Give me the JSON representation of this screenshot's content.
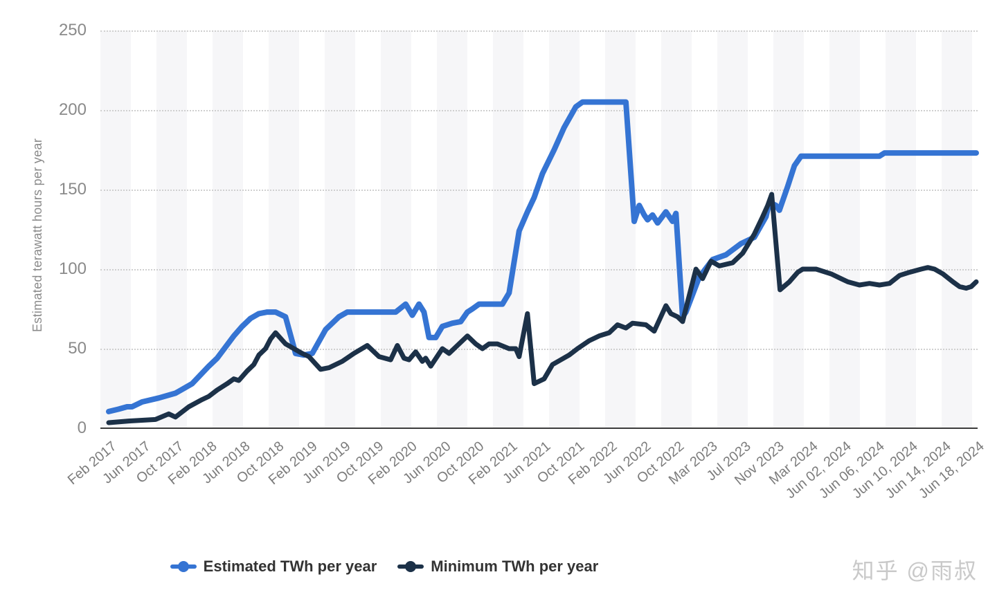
{
  "watermark": "知乎 @雨叔",
  "y_axis": {
    "title": "Estimated terawatt hours per year",
    "tick_values": [
      0,
      50,
      100,
      150,
      200,
      250
    ]
  },
  "x_axis": {
    "tick_labels": [
      "Feb 2017",
      "Jun 2017",
      "Oct 2017",
      "Feb 2018",
      "Jun 2018",
      "Oct 2018",
      "Feb 2019",
      "Jun 2019",
      "Oct 2019",
      "Feb 2020",
      "Jun 2020",
      "Oct 2020",
      "Feb 2021",
      "Jun 2021",
      "Oct 2021",
      "Feb 2022",
      "Jun 2022",
      "Oct 2022",
      "Mar 2023",
      "Jul 2023",
      "Nov 2023",
      "Mar 2024",
      "Jun 02, 2024",
      "Jun 06, 2024",
      "Jun 10, 2024",
      "Jun 14, 2024",
      "Jun 18, 2024"
    ]
  },
  "legend": {
    "items": [
      {
        "label": "Estimated TWh per year",
        "color": "#3574d3"
      },
      {
        "label": "Minimum TWh per year",
        "color": "#1c3148"
      }
    ]
  },
  "chart_data": {
    "type": "line",
    "title": "",
    "ylabel": "Estimated terawatt hours per year",
    "xlabel": "",
    "ylim": [
      0,
      250
    ],
    "y_step": 50,
    "grid": "horizontal-dotted",
    "legend_position": "bottom",
    "background": "alternating vertical light-gray/white stripes",
    "x_unit": "tick index: 0 = Feb 2017 ... 26 = Jun 18, 2024 (27 evenly spaced labeled ticks)",
    "categories": [
      "Feb 2017",
      "Jun 2017",
      "Oct 2017",
      "Feb 2018",
      "Jun 2018",
      "Oct 2018",
      "Feb 2019",
      "Jun 2019",
      "Oct 2019",
      "Feb 2020",
      "Jun 2020",
      "Oct 2020",
      "Feb 2021",
      "Jun 2021",
      "Oct 2021",
      "Feb 2022",
      "Jun 2022",
      "Oct 2022",
      "Mar 2023",
      "Jul 2023",
      "Nov 2023",
      "Mar 2024",
      "Jun 02, 2024",
      "Jun 06, 2024",
      "Jun 10, 2024",
      "Jun 14, 2024",
      "Jun 18, 2024"
    ],
    "series": [
      {
        "name": "Estimated TWh per year",
        "color": "#3574d3",
        "points": [
          [
            0,
            10.5
          ],
          [
            0.3,
            12
          ],
          [
            0.55,
            13.5
          ],
          [
            0.7,
            13.5
          ],
          [
            1,
            16.5
          ],
          [
            1.5,
            19
          ],
          [
            2,
            22
          ],
          [
            2.5,
            28
          ],
          [
            3,
            39
          ],
          [
            3.25,
            44
          ],
          [
            3.5,
            51
          ],
          [
            3.75,
            58
          ],
          [
            4,
            64
          ],
          [
            4.25,
            69
          ],
          [
            4.5,
            72
          ],
          [
            4.75,
            73
          ],
          [
            5,
            73
          ],
          [
            5.3,
            70
          ],
          [
            5.6,
            47
          ],
          [
            5.85,
            46
          ],
          [
            6.1,
            47
          ],
          [
            6.5,
            62
          ],
          [
            6.9,
            70
          ],
          [
            7.15,
            73
          ],
          [
            8,
            73
          ],
          [
            8.6,
            73
          ],
          [
            8.9,
            78
          ],
          [
            9.1,
            71
          ],
          [
            9.3,
            78
          ],
          [
            9.45,
            73
          ],
          [
            9.6,
            57
          ],
          [
            9.8,
            57
          ],
          [
            10,
            64
          ],
          [
            10.3,
            66
          ],
          [
            10.55,
            67
          ],
          [
            10.75,
            73
          ],
          [
            10.9,
            75
          ],
          [
            11.1,
            78
          ],
          [
            11.8,
            78
          ],
          [
            12,
            85
          ],
          [
            12.3,
            124
          ],
          [
            12.55,
            136
          ],
          [
            12.75,
            145
          ],
          [
            13,
            160
          ],
          [
            13.35,
            175
          ],
          [
            13.65,
            189
          ],
          [
            14,
            202
          ],
          [
            14.2,
            205
          ],
          [
            15.5,
            205
          ],
          [
            15.75,
            130
          ],
          [
            15.9,
            140
          ],
          [
            16.05,
            134
          ],
          [
            16.15,
            131
          ],
          [
            16.3,
            134
          ],
          [
            16.45,
            129
          ],
          [
            16.7,
            136
          ],
          [
            16.9,
            130
          ],
          [
            17,
            135
          ],
          [
            17.2,
            70
          ],
          [
            17.3,
            73
          ],
          [
            17.7,
            95
          ],
          [
            18.1,
            106
          ],
          [
            18.5,
            109
          ],
          [
            18.95,
            116
          ],
          [
            19.35,
            120
          ],
          [
            19.7,
            133
          ],
          [
            19.8,
            142
          ],
          [
            20,
            140
          ],
          [
            20.1,
            137
          ],
          [
            20.35,
            152
          ],
          [
            20.55,
            165
          ],
          [
            20.75,
            171
          ],
          [
            23.1,
            171
          ],
          [
            23.25,
            173
          ],
          [
            26,
            173
          ]
        ]
      },
      {
        "name": "Minimum TWh per year",
        "color": "#1c3148",
        "points": [
          [
            0,
            3.5
          ],
          [
            0.6,
            4.5
          ],
          [
            1,
            5
          ],
          [
            1.4,
            5.5
          ],
          [
            1.8,
            9
          ],
          [
            2,
            7
          ],
          [
            2.4,
            13.5
          ],
          [
            2.8,
            18
          ],
          [
            3,
            20
          ],
          [
            3.25,
            24
          ],
          [
            3.55,
            28
          ],
          [
            3.75,
            31
          ],
          [
            3.9,
            30
          ],
          [
            4.15,
            36
          ],
          [
            4.35,
            40
          ],
          [
            4.5,
            46
          ],
          [
            4.7,
            50
          ],
          [
            4.85,
            56
          ],
          [
            5,
            60
          ],
          [
            5.3,
            53
          ],
          [
            5.55,
            50
          ],
          [
            5.8,
            47
          ],
          [
            6,
            45
          ],
          [
            6.35,
            37
          ],
          [
            6.6,
            38
          ],
          [
            7,
            42
          ],
          [
            7.35,
            47
          ],
          [
            7.75,
            52
          ],
          [
            8.1,
            45
          ],
          [
            8.45,
            43
          ],
          [
            8.65,
            52
          ],
          [
            8.85,
            44
          ],
          [
            9,
            43
          ],
          [
            9.2,
            48
          ],
          [
            9.4,
            42
          ],
          [
            9.5,
            44
          ],
          [
            9.65,
            39
          ],
          [
            10,
            50
          ],
          [
            10.2,
            47
          ],
          [
            10.5,
            53
          ],
          [
            10.75,
            58
          ],
          [
            11,
            53
          ],
          [
            11.2,
            50
          ],
          [
            11.4,
            53
          ],
          [
            11.65,
            53
          ],
          [
            12,
            50
          ],
          [
            12.2,
            50
          ],
          [
            12.3,
            45
          ],
          [
            12.55,
            72
          ],
          [
            12.75,
            28
          ],
          [
            13.05,
            31
          ],
          [
            13.3,
            40
          ],
          [
            13.55,
            43
          ],
          [
            13.8,
            46
          ],
          [
            14.05,
            50
          ],
          [
            14.4,
            55
          ],
          [
            14.7,
            58
          ],
          [
            15,
            60
          ],
          [
            15.25,
            65
          ],
          [
            15.5,
            63
          ],
          [
            15.7,
            66
          ],
          [
            16.1,
            65
          ],
          [
            16.35,
            61
          ],
          [
            16.7,
            77
          ],
          [
            16.85,
            72
          ],
          [
            17.05,
            70
          ],
          [
            17.2,
            67
          ],
          [
            17.6,
            100
          ],
          [
            17.8,
            94
          ],
          [
            18.05,
            105
          ],
          [
            18.3,
            102
          ],
          [
            18.7,
            104
          ],
          [
            19,
            110
          ],
          [
            19.35,
            122
          ],
          [
            19.6,
            133
          ],
          [
            19.75,
            140
          ],
          [
            19.87,
            147
          ],
          [
            20.12,
            87
          ],
          [
            20.4,
            92
          ],
          [
            20.65,
            98
          ],
          [
            20.8,
            100
          ],
          [
            21.2,
            100
          ],
          [
            21.65,
            97
          ],
          [
            21.95,
            94
          ],
          [
            22.15,
            92
          ],
          [
            22.5,
            90
          ],
          [
            22.8,
            91
          ],
          [
            23.1,
            90
          ],
          [
            23.4,
            91
          ],
          [
            23.7,
            96
          ],
          [
            24,
            98
          ],
          [
            24.35,
            100
          ],
          [
            24.55,
            101
          ],
          [
            24.75,
            100
          ],
          [
            25,
            97
          ],
          [
            25.3,
            92
          ],
          [
            25.5,
            89
          ],
          [
            25.7,
            88
          ],
          [
            25.85,
            89
          ],
          [
            26,
            92
          ]
        ]
      }
    ]
  }
}
